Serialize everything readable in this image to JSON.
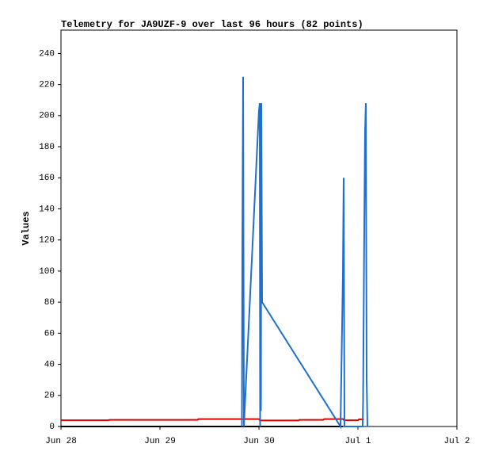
{
  "chart_data": {
    "type": "line",
    "title": "Telemetry for JA9UZF-9 over last 96 hours (82 points)",
    "y_label": "Values",
    "xlim": [
      0,
      4
    ],
    "xticks": [
      {
        "value": 0,
        "label": "Jun 28"
      },
      {
        "value": 1,
        "label": "Jun 29"
      },
      {
        "value": 2,
        "label": "Jun 30"
      },
      {
        "value": 3,
        "label": "Jul 1"
      },
      {
        "value": 4,
        "label": "Jul 2"
      }
    ],
    "ylim": [
      0,
      255
    ],
    "yticks": [
      0,
      20,
      40,
      60,
      80,
      100,
      120,
      140,
      160,
      180,
      200,
      220,
      240
    ],
    "series": [
      {
        "color": "#000000",
        "x": [
          0,
          2.85
        ],
        "values": [
          0,
          0
        ]
      },
      {
        "color": "#e00000",
        "x": [
          0,
          0.48,
          0.49,
          1.38,
          1.39,
          2.0,
          2.01,
          2.4,
          2.41,
          2.65,
          2.66,
          2.85,
          2.86,
          3.0,
          3.01,
          3.06
        ],
        "values": [
          4.0,
          4.0,
          4.3,
          4.3,
          4.8,
          4.8,
          3.9,
          3.9,
          4.3,
          4.3,
          4.8,
          4.8,
          4.0,
          4.0,
          4.6,
          4.6
        ]
      },
      {
        "color": "#1f6fcf",
        "x": [
          1.828,
          1.832,
          1.84,
          1.848,
          1.99,
          2.0,
          2.008,
          2.012,
          2.016,
          2.02,
          2.024,
          2.032,
          2.824,
          2.84,
          2.848,
          2.856,
          2.864,
          3.048,
          3.052,
          3.064,
          3.072,
          3.08,
          3.088,
          3.096
        ],
        "values": [
          0,
          112,
          225,
          0,
          190,
          203,
          208,
          0,
          208,
          10,
          208,
          80,
          0,
          64,
          97,
          160,
          0,
          0,
          16,
          128,
          190,
          208,
          32,
          0
        ]
      }
    ]
  }
}
